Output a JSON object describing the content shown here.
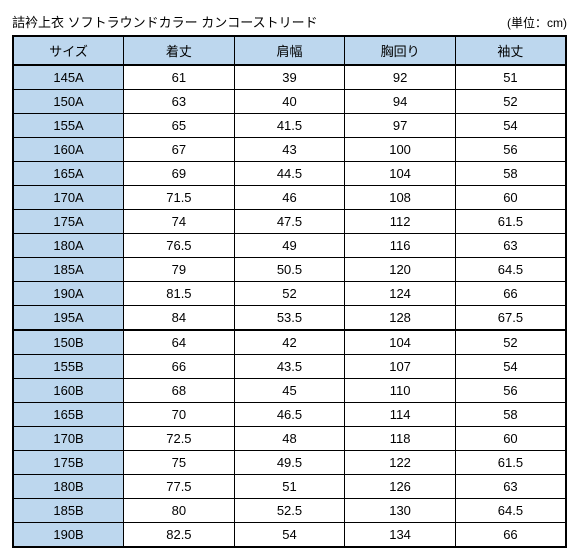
{
  "title": "詰衿上衣 ソフトラウンドカラー カンコーストリード",
  "unit_label": "(単位：cm)",
  "columns": [
    "サイズ",
    "着丈",
    "肩幅",
    "胸回り",
    "袖丈"
  ],
  "sections": [
    {
      "rows": [
        [
          "145A",
          "61",
          "39",
          "92",
          "51"
        ],
        [
          "150A",
          "63",
          "40",
          "94",
          "52"
        ],
        [
          "155A",
          "65",
          "41.5",
          "97",
          "54"
        ],
        [
          "160A",
          "67",
          "43",
          "100",
          "56"
        ],
        [
          "165A",
          "69",
          "44.5",
          "104",
          "58"
        ],
        [
          "170A",
          "71.5",
          "46",
          "108",
          "60"
        ],
        [
          "175A",
          "74",
          "47.5",
          "112",
          "61.5"
        ],
        [
          "180A",
          "76.5",
          "49",
          "116",
          "63"
        ],
        [
          "185A",
          "79",
          "50.5",
          "120",
          "64.5"
        ],
        [
          "190A",
          "81.5",
          "52",
          "124",
          "66"
        ],
        [
          "195A",
          "84",
          "53.5",
          "128",
          "67.5"
        ]
      ]
    },
    {
      "rows": [
        [
          "150B",
          "64",
          "42",
          "104",
          "52"
        ],
        [
          "155B",
          "66",
          "43.5",
          "107",
          "54"
        ],
        [
          "160B",
          "68",
          "45",
          "110",
          "56"
        ],
        [
          "165B",
          "70",
          "46.5",
          "114",
          "58"
        ],
        [
          "170B",
          "72.5",
          "48",
          "118",
          "60"
        ],
        [
          "175B",
          "75",
          "49.5",
          "122",
          "61.5"
        ],
        [
          "180B",
          "77.5",
          "51",
          "126",
          "63"
        ],
        [
          "185B",
          "80",
          "52.5",
          "130",
          "64.5"
        ],
        [
          "190B",
          "82.5",
          "54",
          "134",
          "66"
        ]
      ]
    }
  ],
  "colors": {
    "header_bg": "#bdd7ee",
    "border": "#000000",
    "text": "#000000",
    "page_bg": "#ffffff"
  }
}
